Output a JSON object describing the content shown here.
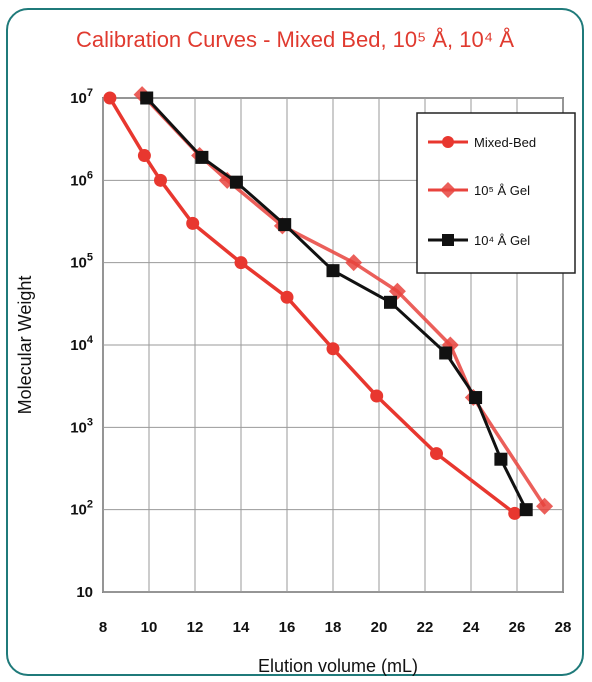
{
  "chart_data": {
    "type": "line",
    "title": "Calibration Curves - Mixed Bed, 10⁵ Å, 10⁴ Å",
    "xlabel": "Elution volume (mL)",
    "ylabel": "Molecular Weight",
    "xlim": [
      8,
      28
    ],
    "ylim": [
      10,
      10000000
    ],
    "yscale": "log",
    "grid": true,
    "legend_position": "top-right",
    "x_ticks": [
      "8",
      "10",
      "12",
      "14",
      "16",
      "18",
      "20",
      "22",
      "24",
      "26",
      "28"
    ],
    "y_ticks": [
      {
        "value": 10,
        "base": "10",
        "exp": ""
      },
      {
        "value": 100,
        "base": "10",
        "exp": "2"
      },
      {
        "value": 1000,
        "base": "10",
        "exp": "3"
      },
      {
        "value": 10000,
        "base": "10",
        "exp": "4"
      },
      {
        "value": 100000,
        "base": "10",
        "exp": "5"
      },
      {
        "value": 1000000,
        "base": "10",
        "exp": "6"
      },
      {
        "value": 10000000,
        "base": "10",
        "exp": "7"
      }
    ],
    "series": [
      {
        "name": "Mixed-Bed",
        "color": "#e8372f",
        "marker": "circle",
        "points": [
          [
            8.3,
            10000000
          ],
          [
            9.8,
            2000000
          ],
          [
            10.5,
            1000000
          ],
          [
            11.9,
            300000
          ],
          [
            14.0,
            100000
          ],
          [
            16.0,
            38000
          ],
          [
            18.0,
            9000
          ],
          [
            19.9,
            2400
          ],
          [
            22.5,
            480
          ],
          [
            25.9,
            90
          ]
        ]
      },
      {
        "name": "10⁵ Å Gel",
        "color": "#e8433d",
        "marker": "diamond",
        "points": [
          [
            9.7,
            11000000
          ],
          [
            12.2,
            2000000
          ],
          [
            13.4,
            1000000
          ],
          [
            15.8,
            280000
          ],
          [
            18.9,
            100000
          ],
          [
            20.8,
            45000
          ],
          [
            23.1,
            10000
          ],
          [
            24.1,
            2300
          ],
          [
            27.2,
            110
          ]
        ]
      },
      {
        "name": "10⁴ Å Gel",
        "color": "#111111",
        "marker": "square",
        "points": [
          [
            9.9,
            10000000
          ],
          [
            12.3,
            1900000
          ],
          [
            13.8,
            950000
          ],
          [
            15.9,
            290000
          ],
          [
            18.0,
            80000
          ],
          [
            20.5,
            33000
          ],
          [
            22.9,
            8000
          ],
          [
            24.2,
            2300
          ],
          [
            25.3,
            410
          ],
          [
            26.4,
            100
          ]
        ]
      }
    ]
  }
}
